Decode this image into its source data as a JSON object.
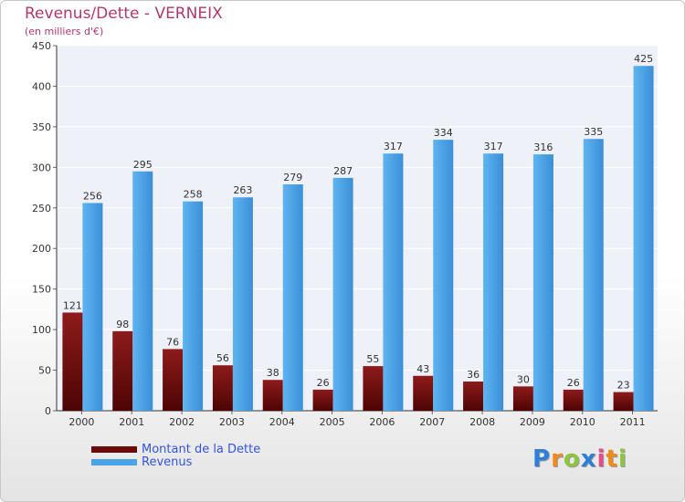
{
  "chart_data": {
    "type": "bar",
    "title": "Revenus/Dette - VERNEIX",
    "subtitle": "(en milliers d'€)",
    "categories": [
      "2000",
      "2001",
      "2002",
      "2003",
      "2004",
      "2005",
      "2006",
      "2007",
      "2008",
      "2009",
      "2010",
      "2011"
    ],
    "series": [
      {
        "name": "Montant de la Dette",
        "color": "#7a0d0d",
        "values": [
          121,
          98,
          76,
          56,
          38,
          26,
          55,
          43,
          36,
          30,
          26,
          23
        ]
      },
      {
        "name": "Revenus",
        "color": "#4aa3e6",
        "values": [
          256,
          295,
          258,
          263,
          279,
          287,
          317,
          334,
          317,
          316,
          335,
          425
        ]
      }
    ],
    "ylim": [
      0,
      450
    ],
    "yticks": [
      0,
      50,
      100,
      150,
      200,
      250,
      300,
      350,
      400,
      450
    ],
    "grid": true,
    "legend_position": "bottom-left"
  },
  "logo": {
    "letters": [
      "P",
      "r",
      "o",
      "x",
      "i",
      "t",
      "i"
    ],
    "colors": [
      "#2f7fd6",
      "#f08a1c",
      "#8cc63f",
      "#2f7fd6",
      "#e94a8a",
      "#f08a1c",
      "#8cc63f"
    ]
  }
}
